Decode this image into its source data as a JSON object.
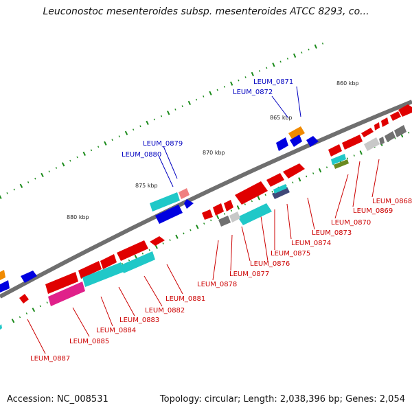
{
  "title": "Leuconostoc mesenteroides subsp. mesenteroides ATCC 8293, co...",
  "footer": {
    "accession": "Accession: NC_008531",
    "summary": "Topology: circular; Length: 2,038,396 bp; Genes: 2,054"
  },
  "scale_labels": [
    "860 kbp",
    "865 kbp",
    "870 kbp",
    "875 kbp",
    "880 kbp"
  ],
  "colors": {
    "red": "#e00000",
    "cyan": "#20c8c8",
    "blue": "#0000e0",
    "magenta": "#e0208a",
    "orange": "#f08a00",
    "backbone": "#707070",
    "tick": "#1a8a1a",
    "label_red": "#cc0000",
    "label_blue": "#0000c0"
  },
  "genes_above": [
    "LEUM_0871",
    "LEUM_0872",
    "LEUM_0879",
    "LEUM_0880"
  ],
  "genes_below": [
    "LEUM_0868",
    "LEUM_0869",
    "LEUM_0870",
    "LEUM_0873",
    "LEUM_0874",
    "LEUM_0875",
    "LEUM_0876",
    "LEUM_0877",
    "LEUM_0878",
    "LEUM_0881",
    "LEUM_0882",
    "LEUM_0883",
    "LEUM_0884",
    "LEUM_0885",
    "LEUM_0887"
  ]
}
